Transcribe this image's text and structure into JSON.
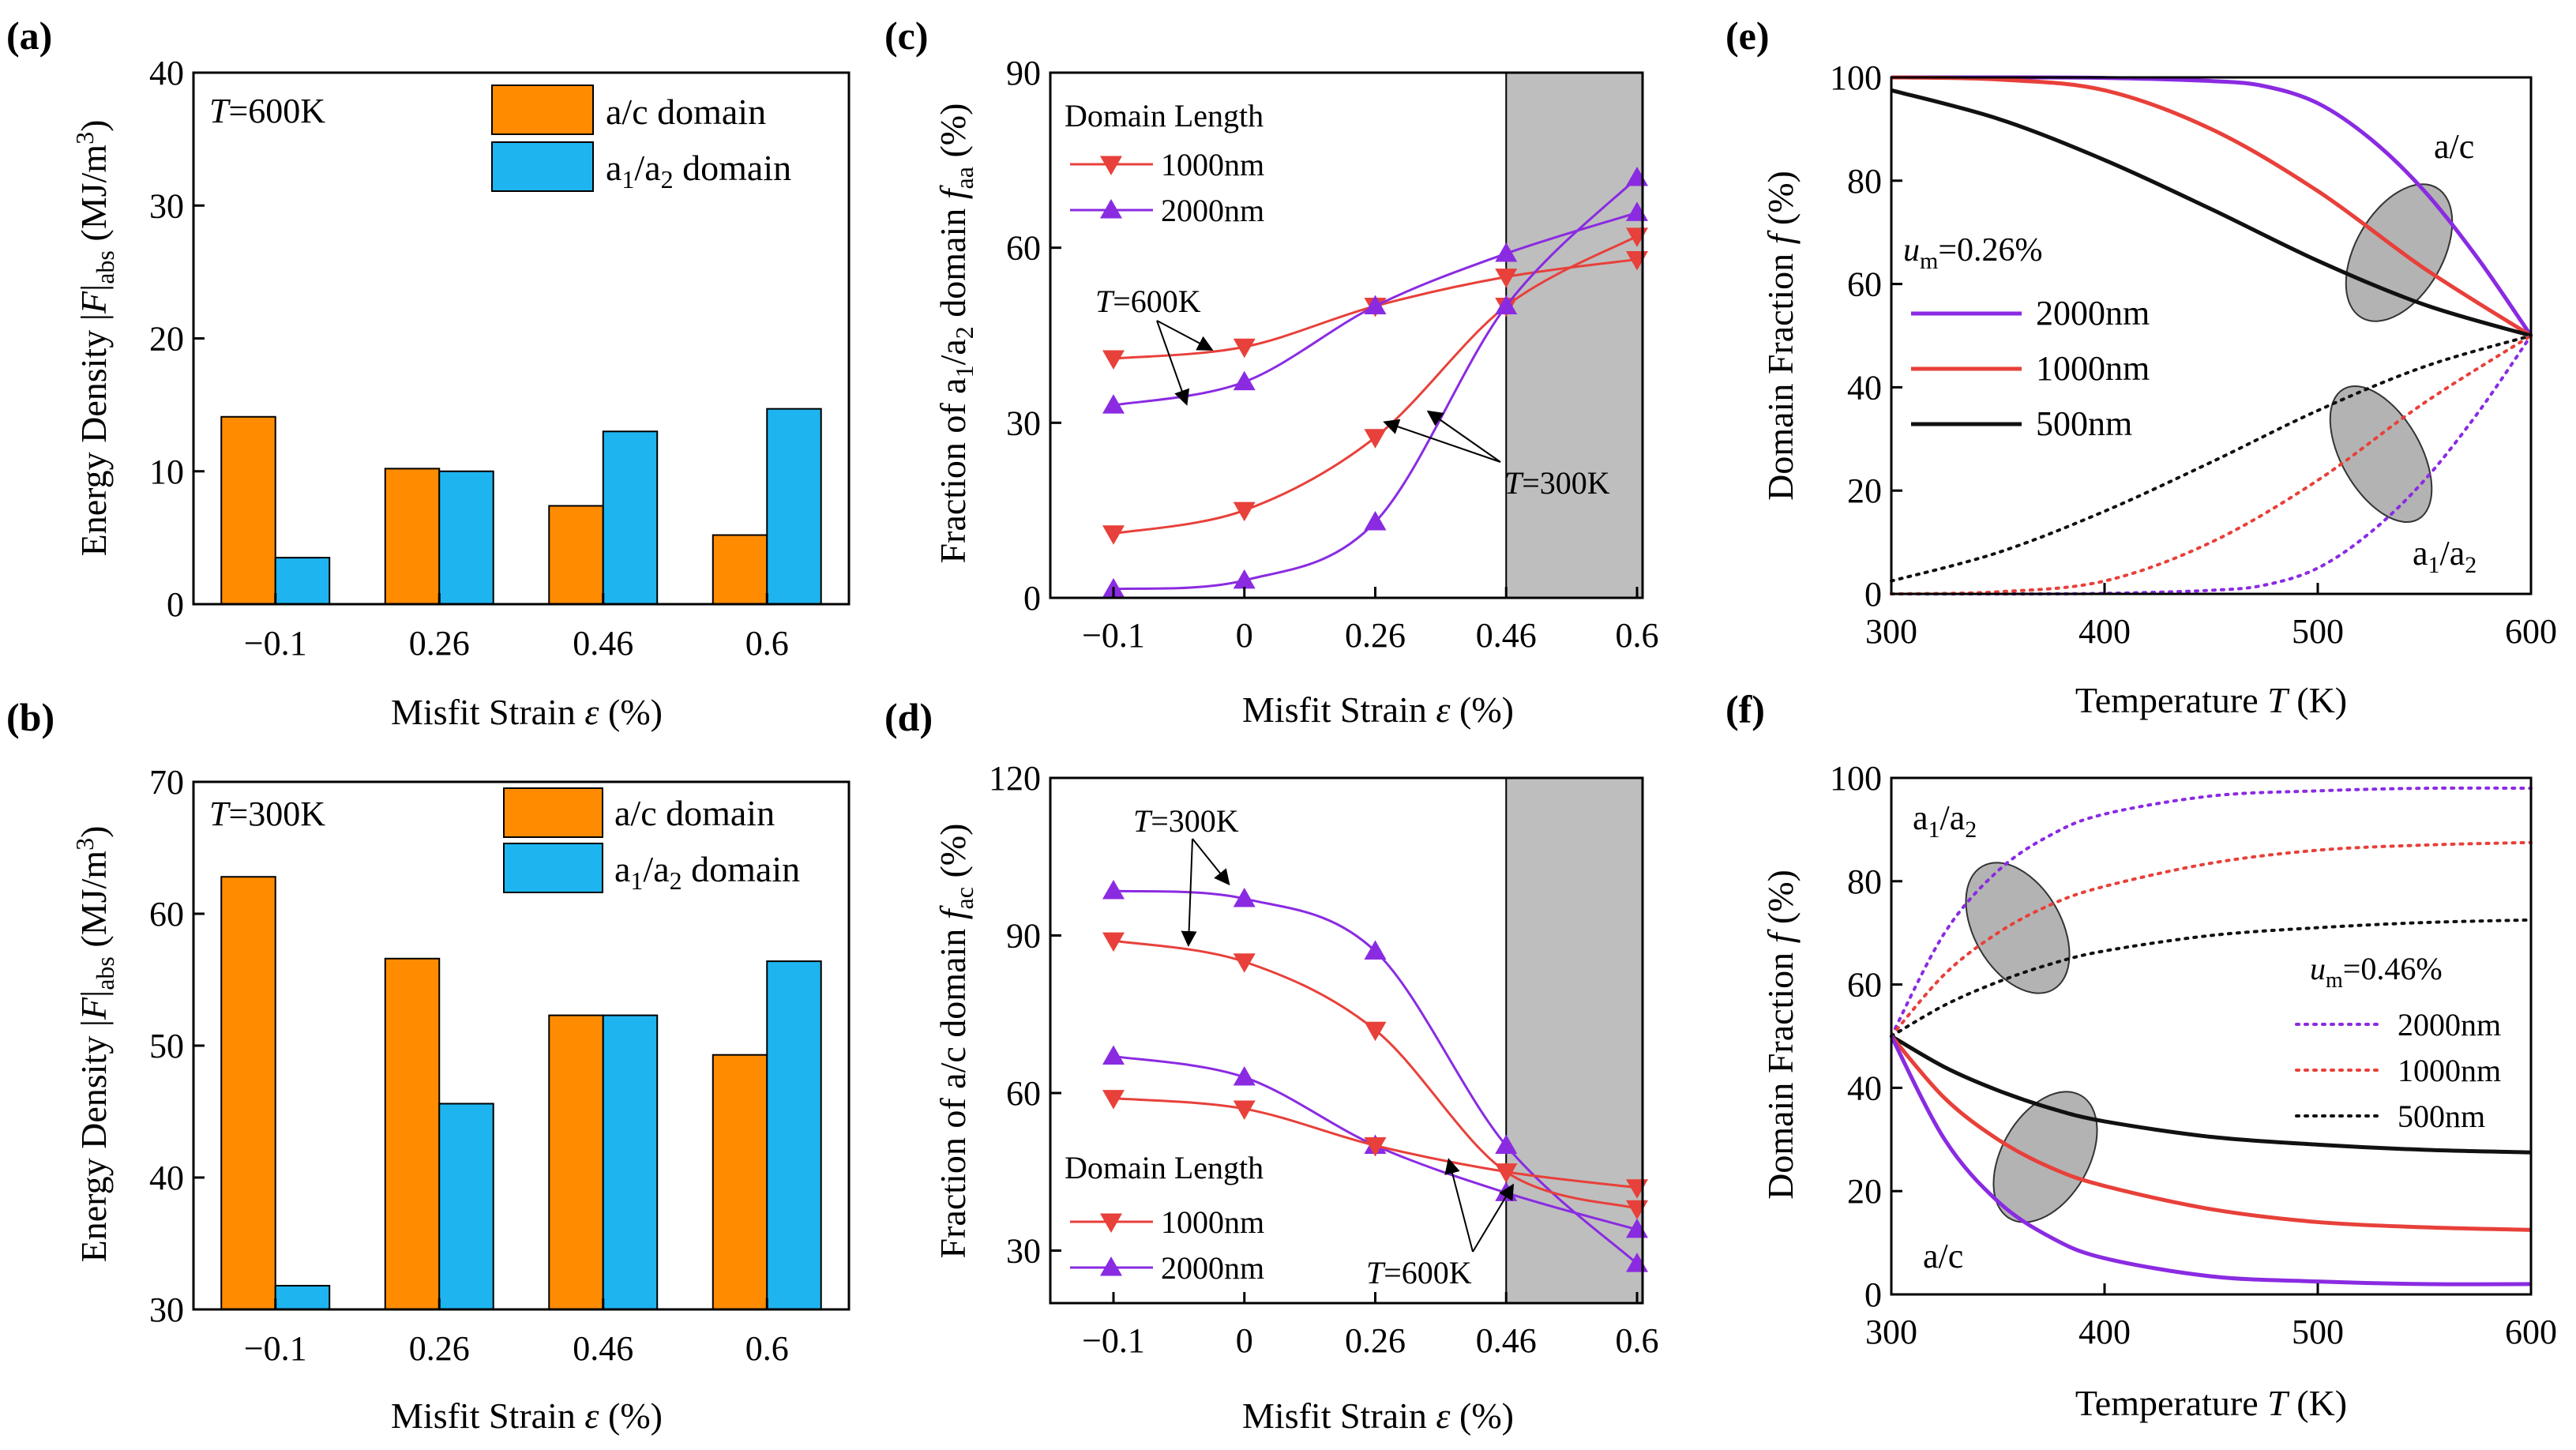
{
  "colors": {
    "orange": "#FF8C00",
    "cyan": "#1EB4F0",
    "red": "#E8403A",
    "purple": "#8A2BE2",
    "black": "#111111",
    "shade": "#BEBEBE",
    "ellipse": "#A6A6A6"
  },
  "chart_data": [
    {
      "id": "a",
      "panel_label": "(a)",
      "type": "bar",
      "temp_prefix": "T",
      "temp_value": "=600K",
      "categories": [
        "−0.1",
        "0.26",
        "0.46",
        "0.6"
      ],
      "series": [
        {
          "name": "a/c domain",
          "color": "#FF8C00",
          "values": [
            14.1,
            10.2,
            7.4,
            5.2
          ]
        },
        {
          "name_main": "a",
          "name_sub1": "1",
          "name_mid": "/a",
          "name_sub2": "2",
          "name_tail": " domain",
          "color": "#1EB4F0",
          "values": [
            3.5,
            10.0,
            13.0,
            14.7
          ]
        }
      ],
      "ylim": [
        0,
        40
      ],
      "yticks": [
        0,
        10,
        20,
        30,
        40
      ],
      "ylabel_main": "Energy Density |",
      "ylabel_italic": "F",
      "ylabel_after": "|",
      "ylabel_sub": "abs",
      "ylabel_unit": " (MJ/m",
      "ylabel_sup": "3",
      "ylabel_close": ")",
      "xlabel_main": "Misfit Strain ",
      "xlabel_italic": "ε",
      "xlabel_unit": " (%)"
    },
    {
      "id": "b",
      "panel_label": "(b)",
      "type": "bar",
      "temp_prefix": "T",
      "temp_value": "=300K",
      "categories": [
        "−0.1",
        "0.26",
        "0.46",
        "0.6"
      ],
      "series": [
        {
          "name": "a/c domain",
          "color": "#FF8C00",
          "values": [
            62.8,
            56.6,
            52.3,
            49.3
          ]
        },
        {
          "name_main": "a",
          "name_sub1": "1",
          "name_mid": "/a",
          "name_sub2": "2",
          "name_tail": " domain",
          "color": "#1EB4F0",
          "values": [
            31.8,
            45.6,
            52.3,
            56.4
          ]
        }
      ],
      "ylim": [
        30,
        70
      ],
      "yticks": [
        30,
        40,
        50,
        60,
        70
      ],
      "ylabel_main": "Energy Density |",
      "ylabel_italic": "F",
      "ylabel_after": "|",
      "ylabel_sub": "abs",
      "ylabel_unit": " (MJ/m",
      "ylabel_sup": "3",
      "ylabel_close": ")",
      "xlabel_main": "Misfit Strain ",
      "xlabel_italic": "ε",
      "xlabel_unit": " (%)"
    },
    {
      "id": "c",
      "panel_label": "(c)",
      "type": "line",
      "x": [
        -0.1,
        0,
        0.26,
        0.46,
        0.6
      ],
      "xticklabels": [
        "−0.1",
        "0",
        "0.26",
        "0.46",
        "0.6"
      ],
      "shade_from": 0.46,
      "shade_to": 0.6,
      "ylim": [
        0,
        90
      ],
      "yticks": [
        0,
        30,
        60,
        90
      ],
      "legend_title": "Domain Length",
      "legend": [
        {
          "name": "1000nm",
          "color": "#E8403A",
          "marker": "down"
        },
        {
          "name": "2000nm",
          "color": "#8A2BE2",
          "marker": "up"
        }
      ],
      "series": [
        {
          "name": "1000nm T=600K",
          "color": "#E8403A",
          "marker": "down",
          "values": [
            41,
            43,
            50,
            55,
            58
          ]
        },
        {
          "name": "2000nm T=600K",
          "color": "#8A2BE2",
          "marker": "up",
          "values": [
            33,
            37,
            50,
            59,
            66
          ]
        },
        {
          "name": "1000nm T=300K",
          "color": "#E8403A",
          "marker": "down",
          "values": [
            11,
            15,
            27.5,
            50,
            62
          ]
        },
        {
          "name": "2000nm T=300K",
          "color": "#8A2BE2",
          "marker": "up",
          "values": [
            1.5,
            3,
            13,
            50,
            72
          ]
        }
      ],
      "annotations": [
        {
          "prefix": "T",
          "value": "=600K"
        },
        {
          "prefix": "T",
          "value": "=300K"
        }
      ],
      "ylabel_main": "Fraction of a",
      "ylabel_sub1": "1",
      "ylabel_mid": "/a",
      "ylabel_sub2": "2",
      "ylabel_rest": " domain ",
      "ylabel_f": "f",
      "ylabel_fsub": "aa",
      "ylabel_unit": " (%)",
      "xlabel_main": "Misfit Strain ",
      "xlabel_italic": "ε",
      "xlabel_unit": " (%)"
    },
    {
      "id": "d",
      "panel_label": "(d)",
      "type": "line",
      "x": [
        -0.1,
        0,
        0.26,
        0.46,
        0.6
      ],
      "xticklabels": [
        "−0.1",
        "0",
        "0.26",
        "0.46",
        "0.6"
      ],
      "shade_from": 0.46,
      "shade_to": 0.6,
      "ylim": [
        20,
        120
      ],
      "yticks": [
        30,
        60,
        90,
        120
      ],
      "legend_title": "Domain Length",
      "legend": [
        {
          "name": "1000nm",
          "color": "#E8403A",
          "marker": "down"
        },
        {
          "name": "2000nm",
          "color": "#8A2BE2",
          "marker": "up"
        }
      ],
      "series": [
        {
          "name": "2000nm T=300K",
          "color": "#8A2BE2",
          "marker": "up",
          "values": [
            98.5,
            97,
            87,
            50,
            27.5
          ]
        },
        {
          "name": "1000nm T=300K",
          "color": "#E8403A",
          "marker": "down",
          "values": [
            89,
            85,
            72,
            45,
            38
          ]
        },
        {
          "name": "2000nm T=600K",
          "color": "#8A2BE2",
          "marker": "up",
          "values": [
            67,
            63,
            50,
            41,
            34
          ]
        },
        {
          "name": "1000nm T=600K",
          "color": "#E8403A",
          "marker": "down",
          "values": [
            59,
            57,
            50,
            45,
            42
          ]
        }
      ],
      "annotations": [
        {
          "prefix": "T",
          "value": "=300K"
        },
        {
          "prefix": "T",
          "value": "=600K"
        }
      ],
      "ylabel_main": "Fraction of a/c domain ",
      "ylabel_f": "f",
      "ylabel_fsub": "ac",
      "ylabel_unit": " (%)",
      "xlabel_main": "Misfit Strain ",
      "xlabel_italic": "ε",
      "xlabel_unit": " (%)"
    },
    {
      "id": "e",
      "panel_label": "(e)",
      "type": "line",
      "xlim": [
        300,
        600
      ],
      "xticks": [
        300,
        400,
        500,
        600
      ],
      "ylim": [
        0,
        100
      ],
      "yticks": [
        0,
        20,
        40,
        60,
        80,
        100
      ],
      "param_prefix": "u",
      "param_sub": "m",
      "param_value": "=0.26%",
      "legend": [
        {
          "name": "2000nm",
          "color": "#8A2BE2"
        },
        {
          "name": "1000nm",
          "color": "#E8403A"
        },
        {
          "name": "500nm",
          "color": "#111111"
        }
      ],
      "series": [
        {
          "name": "2000nm a/c",
          "color": "#8A2BE2",
          "style": "solid",
          "x": [
            300,
            350,
            400,
            450,
            475,
            500,
            525,
            550,
            575,
            600
          ],
          "values": [
            100,
            100,
            99.9,
            99.3,
            98.3,
            95,
            88,
            78,
            65,
            50
          ]
        },
        {
          "name": "1000nm a/c",
          "color": "#E8403A",
          "style": "solid",
          "x": [
            300,
            350,
            400,
            450,
            500,
            550,
            600
          ],
          "values": [
            100,
            99.6,
            97.5,
            90,
            78,
            63,
            50
          ]
        },
        {
          "name": "500nm a/c",
          "color": "#111111",
          "style": "solid",
          "x": [
            300,
            350,
            400,
            450,
            500,
            550,
            600
          ],
          "values": [
            97.5,
            92,
            84,
            74.5,
            64.5,
            56,
            50
          ]
        },
        {
          "name": "2000nm a1/a2",
          "color": "#8A2BE2",
          "style": "dotted",
          "x": [
            300,
            350,
            400,
            450,
            475,
            500,
            525,
            550,
            575,
            600
          ],
          "values": [
            0,
            0,
            0.1,
            0.7,
            1.7,
            5,
            12,
            22,
            35,
            50
          ]
        },
        {
          "name": "1000nm a1/a2",
          "color": "#E8403A",
          "style": "dotted",
          "x": [
            300,
            350,
            400,
            450,
            500,
            550,
            600
          ],
          "values": [
            0,
            0.4,
            2.5,
            10,
            22,
            37,
            50
          ]
        },
        {
          "name": "500nm a1/a2",
          "color": "#111111",
          "style": "dotted",
          "x": [
            300,
            350,
            400,
            450,
            500,
            550,
            600
          ],
          "values": [
            2.5,
            8,
            16,
            25.5,
            35.5,
            44,
            50
          ]
        }
      ],
      "group_label_top": "a/c",
      "group_label_bottom_main": "a",
      "group_label_bottom_sub1": "1",
      "group_label_bottom_mid": "/a",
      "group_label_bottom_sub2": "2",
      "ylabel_main": "Domain Fraction ",
      "ylabel_italic": "f",
      "ylabel_unit": " (%)",
      "xlabel_main": "Temperature ",
      "xlabel_italic": "T",
      "xlabel_unit": " (K)"
    },
    {
      "id": "f",
      "panel_label": "(f)",
      "type": "line",
      "xlim": [
        300,
        600
      ],
      "xticks": [
        300,
        400,
        500,
        600
      ],
      "ylim": [
        0,
        100
      ],
      "yticks": [
        0,
        20,
        40,
        60,
        80,
        100
      ],
      "param_prefix": "u",
      "param_sub": "m",
      "param_value": "=0.46%",
      "legend": [
        {
          "name": "2000nm",
          "color": "#8A2BE2"
        },
        {
          "name": "1000nm",
          "color": "#E8403A"
        },
        {
          "name": "500nm",
          "color": "#111111"
        }
      ],
      "series": [
        {
          "name": "2000nm a1/a2",
          "color": "#8A2BE2",
          "style": "dotted",
          "x": [
            300,
            325,
            350,
            375,
            400,
            450,
            500,
            550,
            600
          ],
          "values": [
            50,
            70,
            82,
            89,
            93,
            96.5,
            97.5,
            98,
            98
          ]
        },
        {
          "name": "1000nm a1/a2",
          "color": "#E8403A",
          "style": "dotted",
          "x": [
            300,
            325,
            350,
            375,
            400,
            450,
            500,
            550,
            600
          ],
          "values": [
            50,
            62,
            70,
            75.5,
            79,
            83.5,
            86,
            87,
            87.5
          ]
        },
        {
          "name": "500nm a1/a2",
          "color": "#111111",
          "style": "dotted",
          "x": [
            300,
            325,
            350,
            375,
            400,
            450,
            500,
            550,
            600
          ],
          "values": [
            50,
            56,
            60.5,
            64,
            66.5,
            69.5,
            71,
            72,
            72.5
          ]
        },
        {
          "name": "500nm a/c",
          "color": "#111111",
          "style": "solid",
          "x": [
            300,
            325,
            350,
            375,
            400,
            450,
            500,
            550,
            600
          ],
          "values": [
            50,
            44,
            39.5,
            36,
            33.5,
            30.5,
            29,
            28,
            27.5
          ]
        },
        {
          "name": "1000nm a/c",
          "color": "#E8403A",
          "style": "solid",
          "x": [
            300,
            325,
            350,
            375,
            400,
            450,
            500,
            550,
            600
          ],
          "values": [
            50,
            38,
            30,
            24.5,
            21,
            16.5,
            14,
            13,
            12.5
          ]
        },
        {
          "name": "2000nm a/c",
          "color": "#8A2BE2",
          "style": "solid",
          "x": [
            300,
            325,
            350,
            375,
            400,
            450,
            500,
            550,
            600
          ],
          "values": [
            50,
            30,
            18,
            11,
            7,
            3.5,
            2.5,
            2,
            2
          ]
        }
      ],
      "group_label_top_main": "a",
      "group_label_top_sub1": "1",
      "group_label_top_mid": "/a",
      "group_label_top_sub2": "2",
      "group_label_bottom": "a/c",
      "ylabel_main": "Domain Fraction ",
      "ylabel_italic": "f",
      "ylabel_unit": " (%)",
      "xlabel_main": "Temperature ",
      "xlabel_italic": "T",
      "xlabel_unit": " (K)"
    }
  ]
}
